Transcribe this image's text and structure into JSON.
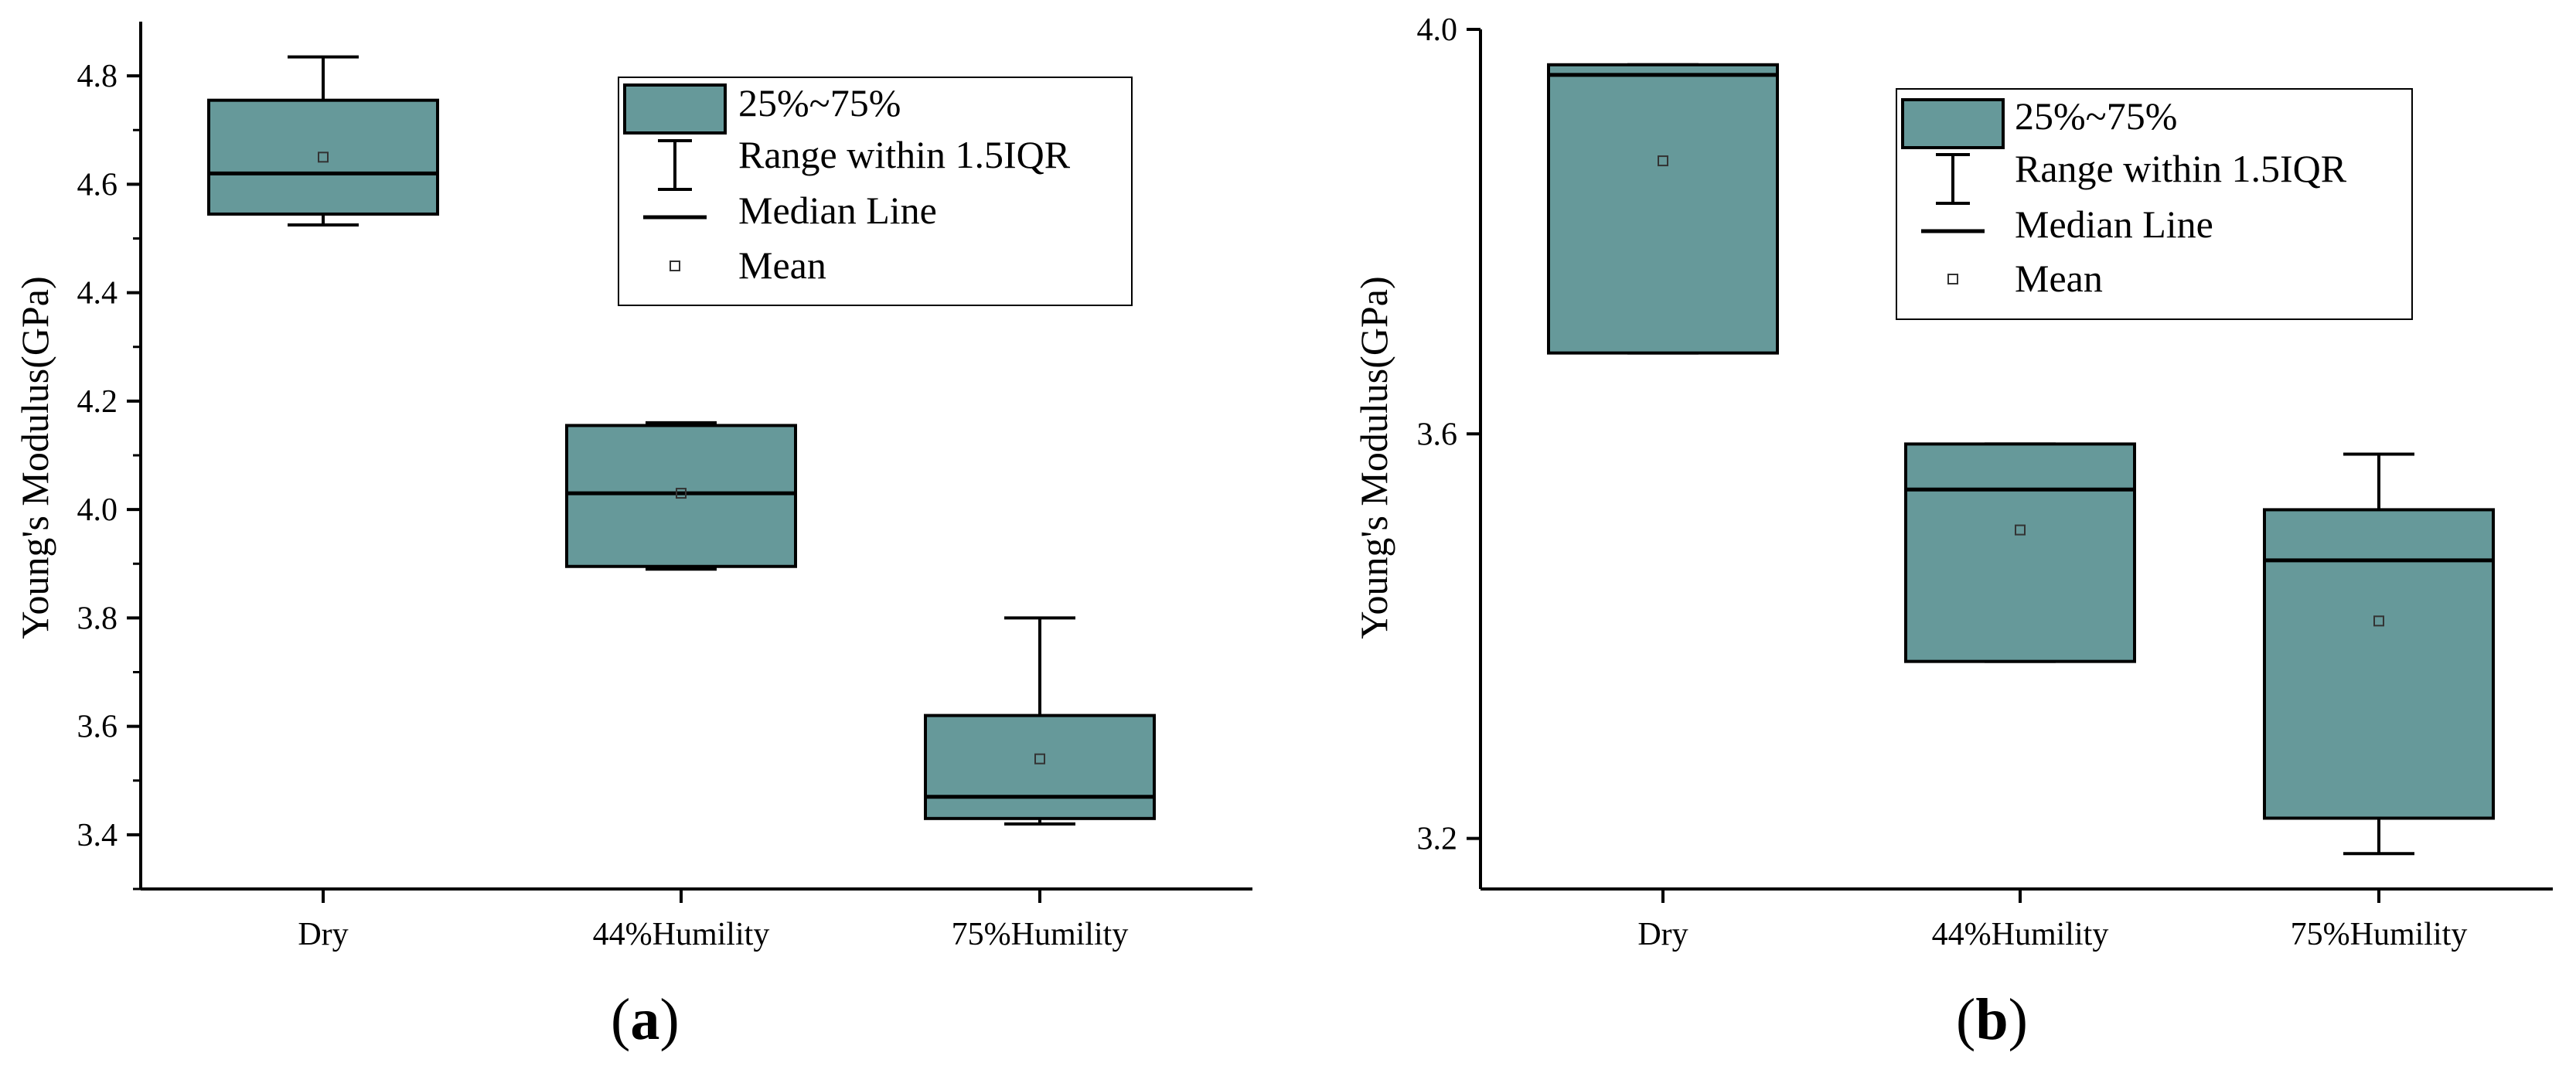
{
  "colors": {
    "box_fill": "#66999a",
    "stroke": "#000000",
    "background": "#ffffff"
  },
  "chart_data": [
    {
      "type": "box",
      "panel_label": "a",
      "ylabel": "Young's Modulus(GPa)",
      "xlabel": "",
      "ylim": [
        3.3,
        4.9
      ],
      "yticks": [
        3.4,
        3.6,
        3.8,
        4.0,
        4.2,
        4.4,
        4.6,
        4.8
      ],
      "ytick_labels": [
        "3.4",
        "3.6",
        "3.8",
        "4.0",
        "4.2",
        "4.4",
        "4.6",
        "4.8"
      ],
      "categories": [
        "Dry",
        "44%Humility",
        "75%Humility"
      ],
      "boxes": [
        {
          "category": "Dry",
          "whisker_low": 4.525,
          "q1": 4.545,
          "median": 4.62,
          "q3": 4.755,
          "whisker_high": 4.835,
          "mean": 4.65
        },
        {
          "category": "44%Humility",
          "whisker_low": 3.89,
          "q1": 3.895,
          "median": 4.03,
          "q3": 4.155,
          "whisker_high": 4.16,
          "mean": 4.03
        },
        {
          "category": "75%Humility",
          "whisker_low": 3.42,
          "q1": 3.43,
          "median": 3.47,
          "q3": 3.62,
          "whisker_high": 3.8,
          "mean": 3.54
        }
      ],
      "legend": {
        "position": "top-right",
        "entries": [
          "25%~75%",
          "Range within 1.5IQR",
          "Median Line",
          "Mean"
        ]
      }
    },
    {
      "type": "box",
      "panel_label": "b",
      "ylabel": "Young's Modulus(GPa)",
      "xlabel": "",
      "ylim": [
        3.15,
        4.0
      ],
      "yticks": [
        3.2,
        3.6,
        4.0
      ],
      "ytick_labels": [
        "3.2",
        "3.6",
        "4.0"
      ],
      "categories": [
        "Dry",
        "44%Humility",
        "75%Humility"
      ],
      "boxes": [
        {
          "category": "Dry",
          "whisker_low": 3.68,
          "q1": 3.68,
          "median": 3.955,
          "q3": 3.965,
          "whisker_high": 3.965,
          "mean": 3.87
        },
        {
          "category": "44%Humility",
          "whisker_low": 3.375,
          "q1": 3.375,
          "median": 3.545,
          "q3": 3.59,
          "whisker_high": 3.59,
          "mean": 3.505
        },
        {
          "category": "75%Humility",
          "whisker_low": 3.185,
          "q1": 3.22,
          "median": 3.475,
          "q3": 3.525,
          "whisker_high": 3.58,
          "mean": 3.415
        }
      ],
      "legend": {
        "position": "top-right",
        "entries": [
          "25%~75%",
          "Range within 1.5IQR",
          "Median Line",
          "Mean"
        ]
      }
    }
  ]
}
